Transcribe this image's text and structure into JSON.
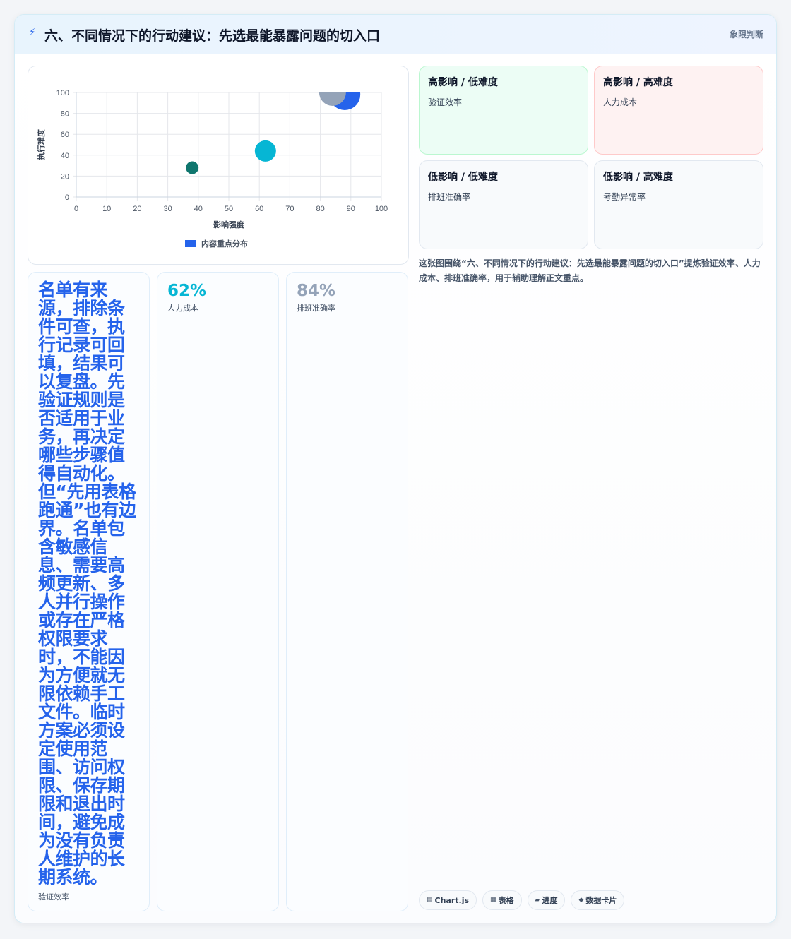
{
  "header": {
    "icon": "lightning-icon",
    "title": "六、不同情况下的行动建议：先选最能暴露问题的切入口",
    "tag": "象限判断"
  },
  "colors": {
    "accent": "#2563eb",
    "teal": "#0f766e",
    "cyan": "#06b6d4",
    "slate": "#94a3b8"
  },
  "chart_data": {
    "type": "scatter",
    "xlabel": "影响强度",
    "ylabel": "执行难度",
    "xlim": [
      0,
      100
    ],
    "ylim": [
      0,
      100
    ],
    "x_ticks": [
      "0",
      "10",
      "20",
      "30",
      "40",
      "50",
      "60",
      "70",
      "80",
      "90",
      "100"
    ],
    "y_ticks": [
      "0",
      "20",
      "40",
      "60",
      "80",
      "100"
    ],
    "grid": true,
    "legend": "bottom",
    "legend_label": "内容重点分布",
    "points": [
      {
        "x": 38,
        "y": 28,
        "r": 9,
        "color": "#0f766e"
      },
      {
        "x": 62,
        "y": 44,
        "r": 15,
        "color": "#06b6d4"
      },
      {
        "x": 88,
        "y": 98,
        "r": 22,
        "color": "#2563eb"
      },
      {
        "x": 84,
        "y": 100,
        "r": 19,
        "color": "#94a3b8"
      }
    ]
  },
  "quadrants": [
    {
      "title": "高影响 / 低难度",
      "item": "验证效率"
    },
    {
      "title": "高影响 / 高难度",
      "item": "人力成本"
    },
    {
      "title": "低影响 / 低难度",
      "item": "排班准确率"
    },
    {
      "title": "低影响 / 高难度",
      "item": "考勤异常率"
    }
  ],
  "caption": "这张图围绕“六、不同情况下的行动建议：先选最能暴露问题的切入口”提炼验证效率、人力成本、排班准确率，用于辅助理解正文重点。",
  "text_card": {
    "body": "名单有来源，排除条件可查，执行记录可回填，结果可以复盘。先验证规则是否适用于业务，再决定哪些步骤值得自动化。但“先用表格跑通”也有边界。名单包含敏感信息、需要高频更新、多人并行操作或存在严格权限要求时，不能因为方便就无限依赖手工文件。临时方案必须设定使用范围、访问权限、保存期限和退出时间，避免成为没有负责人维护的长期系统。",
    "label": "验证效率"
  },
  "stats": [
    {
      "value": "62%",
      "label": "人力成本",
      "color": "#06b6d4"
    },
    {
      "value": "84%",
      "label": "排班准确率",
      "color": "#94a3b8"
    }
  ],
  "chips": [
    {
      "icon": "chart-icon",
      "glyph": "▤",
      "label": "Chart.js"
    },
    {
      "icon": "table-icon",
      "glyph": "▦",
      "label": "表格"
    },
    {
      "icon": "progress-icon",
      "glyph": "▰",
      "label": "进度"
    },
    {
      "icon": "card-icon",
      "glyph": "◆",
      "label": "数据卡片"
    }
  ]
}
